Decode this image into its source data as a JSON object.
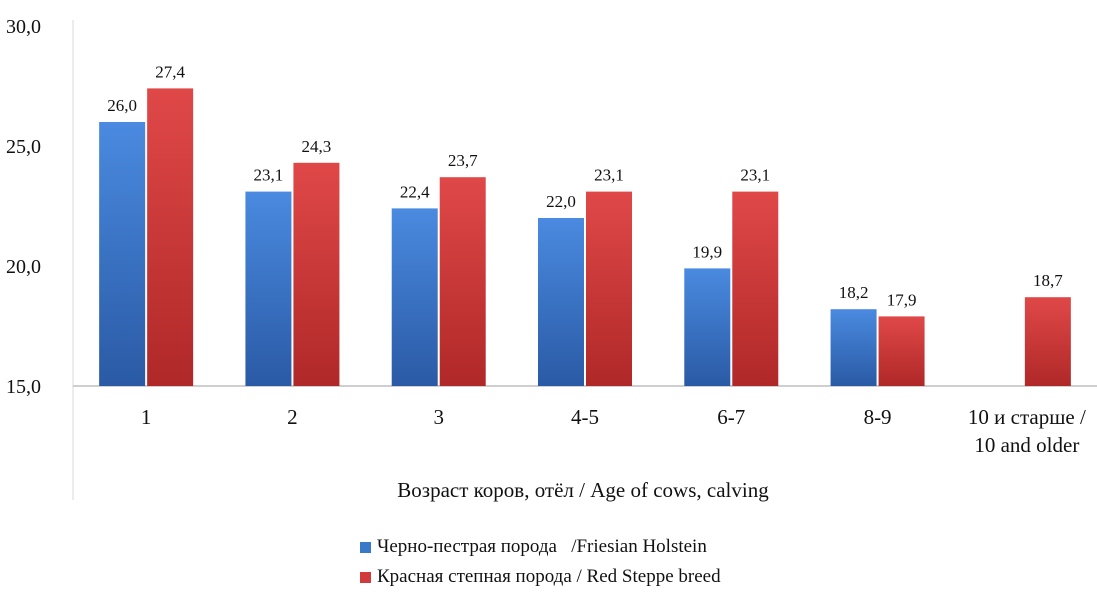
{
  "chart_data": {
    "type": "bar",
    "categories": [
      "1",
      "2",
      "3",
      "4-5",
      "6-7",
      "8-9",
      "10 и старше / 10 and older"
    ],
    "category_lines": [
      [
        "1"
      ],
      [
        "2"
      ],
      [
        "3"
      ],
      [
        "4-5"
      ],
      [
        "6-7"
      ],
      [
        "8-9"
      ],
      [
        "10 и старше /",
        "10 and older"
      ]
    ],
    "series": [
      {
        "name": "Черно-пестрая порода   /Friesian Holstein",
        "color": "#3a78c9",
        "values": [
          26.0,
          23.1,
          22.4,
          22.0,
          19.9,
          18.2,
          null
        ],
        "labels": [
          "26,0",
          "23,1",
          "22,4",
          "22,0",
          "19,9",
          "18,2",
          ""
        ]
      },
      {
        "name": "Красная степная порода / Red Steppe breed",
        "color": "#d13b3b",
        "values": [
          27.4,
          24.3,
          23.7,
          23.1,
          23.1,
          17.9,
          18.7
        ],
        "labels": [
          "27,4",
          "24,3",
          "23,7",
          "23,1",
          "23,1",
          "17,9",
          "18,7"
        ]
      }
    ],
    "yticks": [
      15.0,
      20.0,
      25.0,
      30.0
    ],
    "ytick_labels": [
      "15,0",
      "20,0",
      "25,0",
      "30,0"
    ],
    "ylim": [
      15,
      30
    ],
    "xlabel": "Возраст коров, отёл / Age of cows, calving",
    "ylabel": "",
    "grid": false,
    "legend_position": "bottom"
  }
}
